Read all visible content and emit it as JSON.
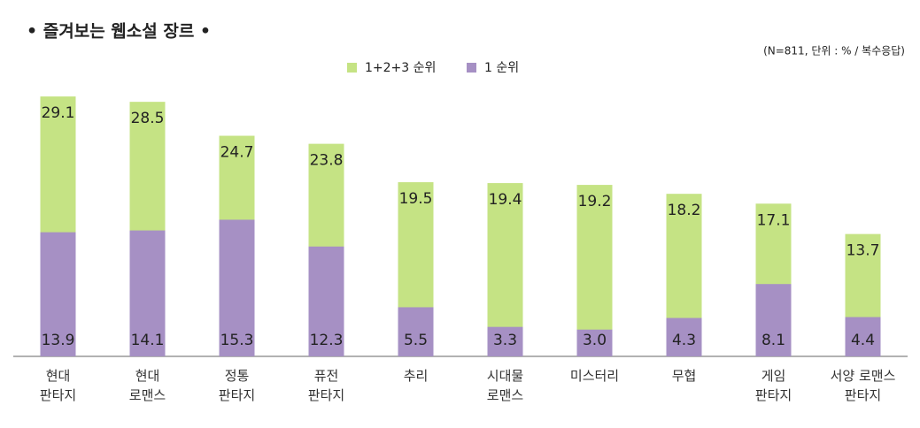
{
  "chart_data": {
    "type": "bar",
    "title": "• 즐겨보는 웹소설 장르 •",
    "subtitle": "(N=811, 단위 : % / 복수응답)",
    "categories": [
      "현대\n판타지",
      "현대\n로맨스",
      "정통\n판타지",
      "퓨전\n판타지",
      "추리",
      "시대물\n로맨스",
      "미스터리",
      "무협",
      "게임\n판타지",
      "서양 로맨스\n판타지"
    ],
    "series": [
      {
        "name": "1+2+3 순위",
        "color": "#c5e384",
        "values": [
          29.1,
          28.5,
          24.7,
          23.8,
          19.5,
          19.4,
          19.2,
          18.2,
          17.1,
          13.7
        ]
      },
      {
        "name": "1 순위",
        "color": "#a690c4",
        "values": [
          13.9,
          14.1,
          15.3,
          12.3,
          5.5,
          3.3,
          3.0,
          4.3,
          8.1,
          4.4
        ],
        "value_labels": [
          "13.9",
          "14.1",
          "15.3",
          "12.3",
          "5.5",
          "3.3",
          "3.0",
          "4.3",
          "8.1",
          "4.4"
        ]
      }
    ],
    "ylim": [
      0,
      30
    ]
  }
}
